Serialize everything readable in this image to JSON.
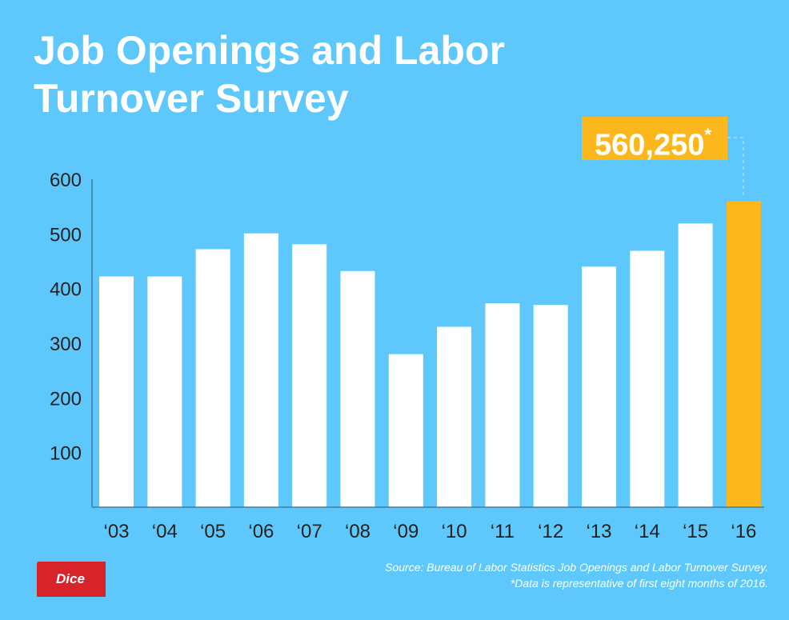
{
  "title_line1": "Job Openings and Labor",
  "title_line2": "Turnover Survey",
  "callout": {
    "value": "560,250",
    "mark": "*"
  },
  "source_line1": "Source: Bureau of Labor Statistics Job Openings and Labor Turnover Survey.",
  "source_line2": "*Data is representative of first eight months of 2016.",
  "logo_text": "Dice",
  "colors": {
    "background": "#5ec8fc",
    "bar": "#ffffff",
    "highlight": "#fbb71b",
    "logo": "#d7232a",
    "axis": "#3d7fa6"
  },
  "chart_data": {
    "type": "bar",
    "categories": [
      "‘03",
      "‘04",
      "‘05",
      "‘06",
      "‘07",
      "‘08",
      "‘09",
      "‘10",
      "‘11",
      "‘12",
      "‘13",
      "‘14",
      "‘15",
      "‘16"
    ],
    "values": [
      422,
      422,
      472,
      501,
      481,
      432,
      280,
      330,
      373,
      370,
      440,
      469,
      519,
      560.25
    ],
    "highlight_index": 13,
    "yticks": [
      100,
      200,
      300,
      400,
      500,
      600
    ],
    "ylim": [
      0,
      600
    ],
    "grid": false
  }
}
